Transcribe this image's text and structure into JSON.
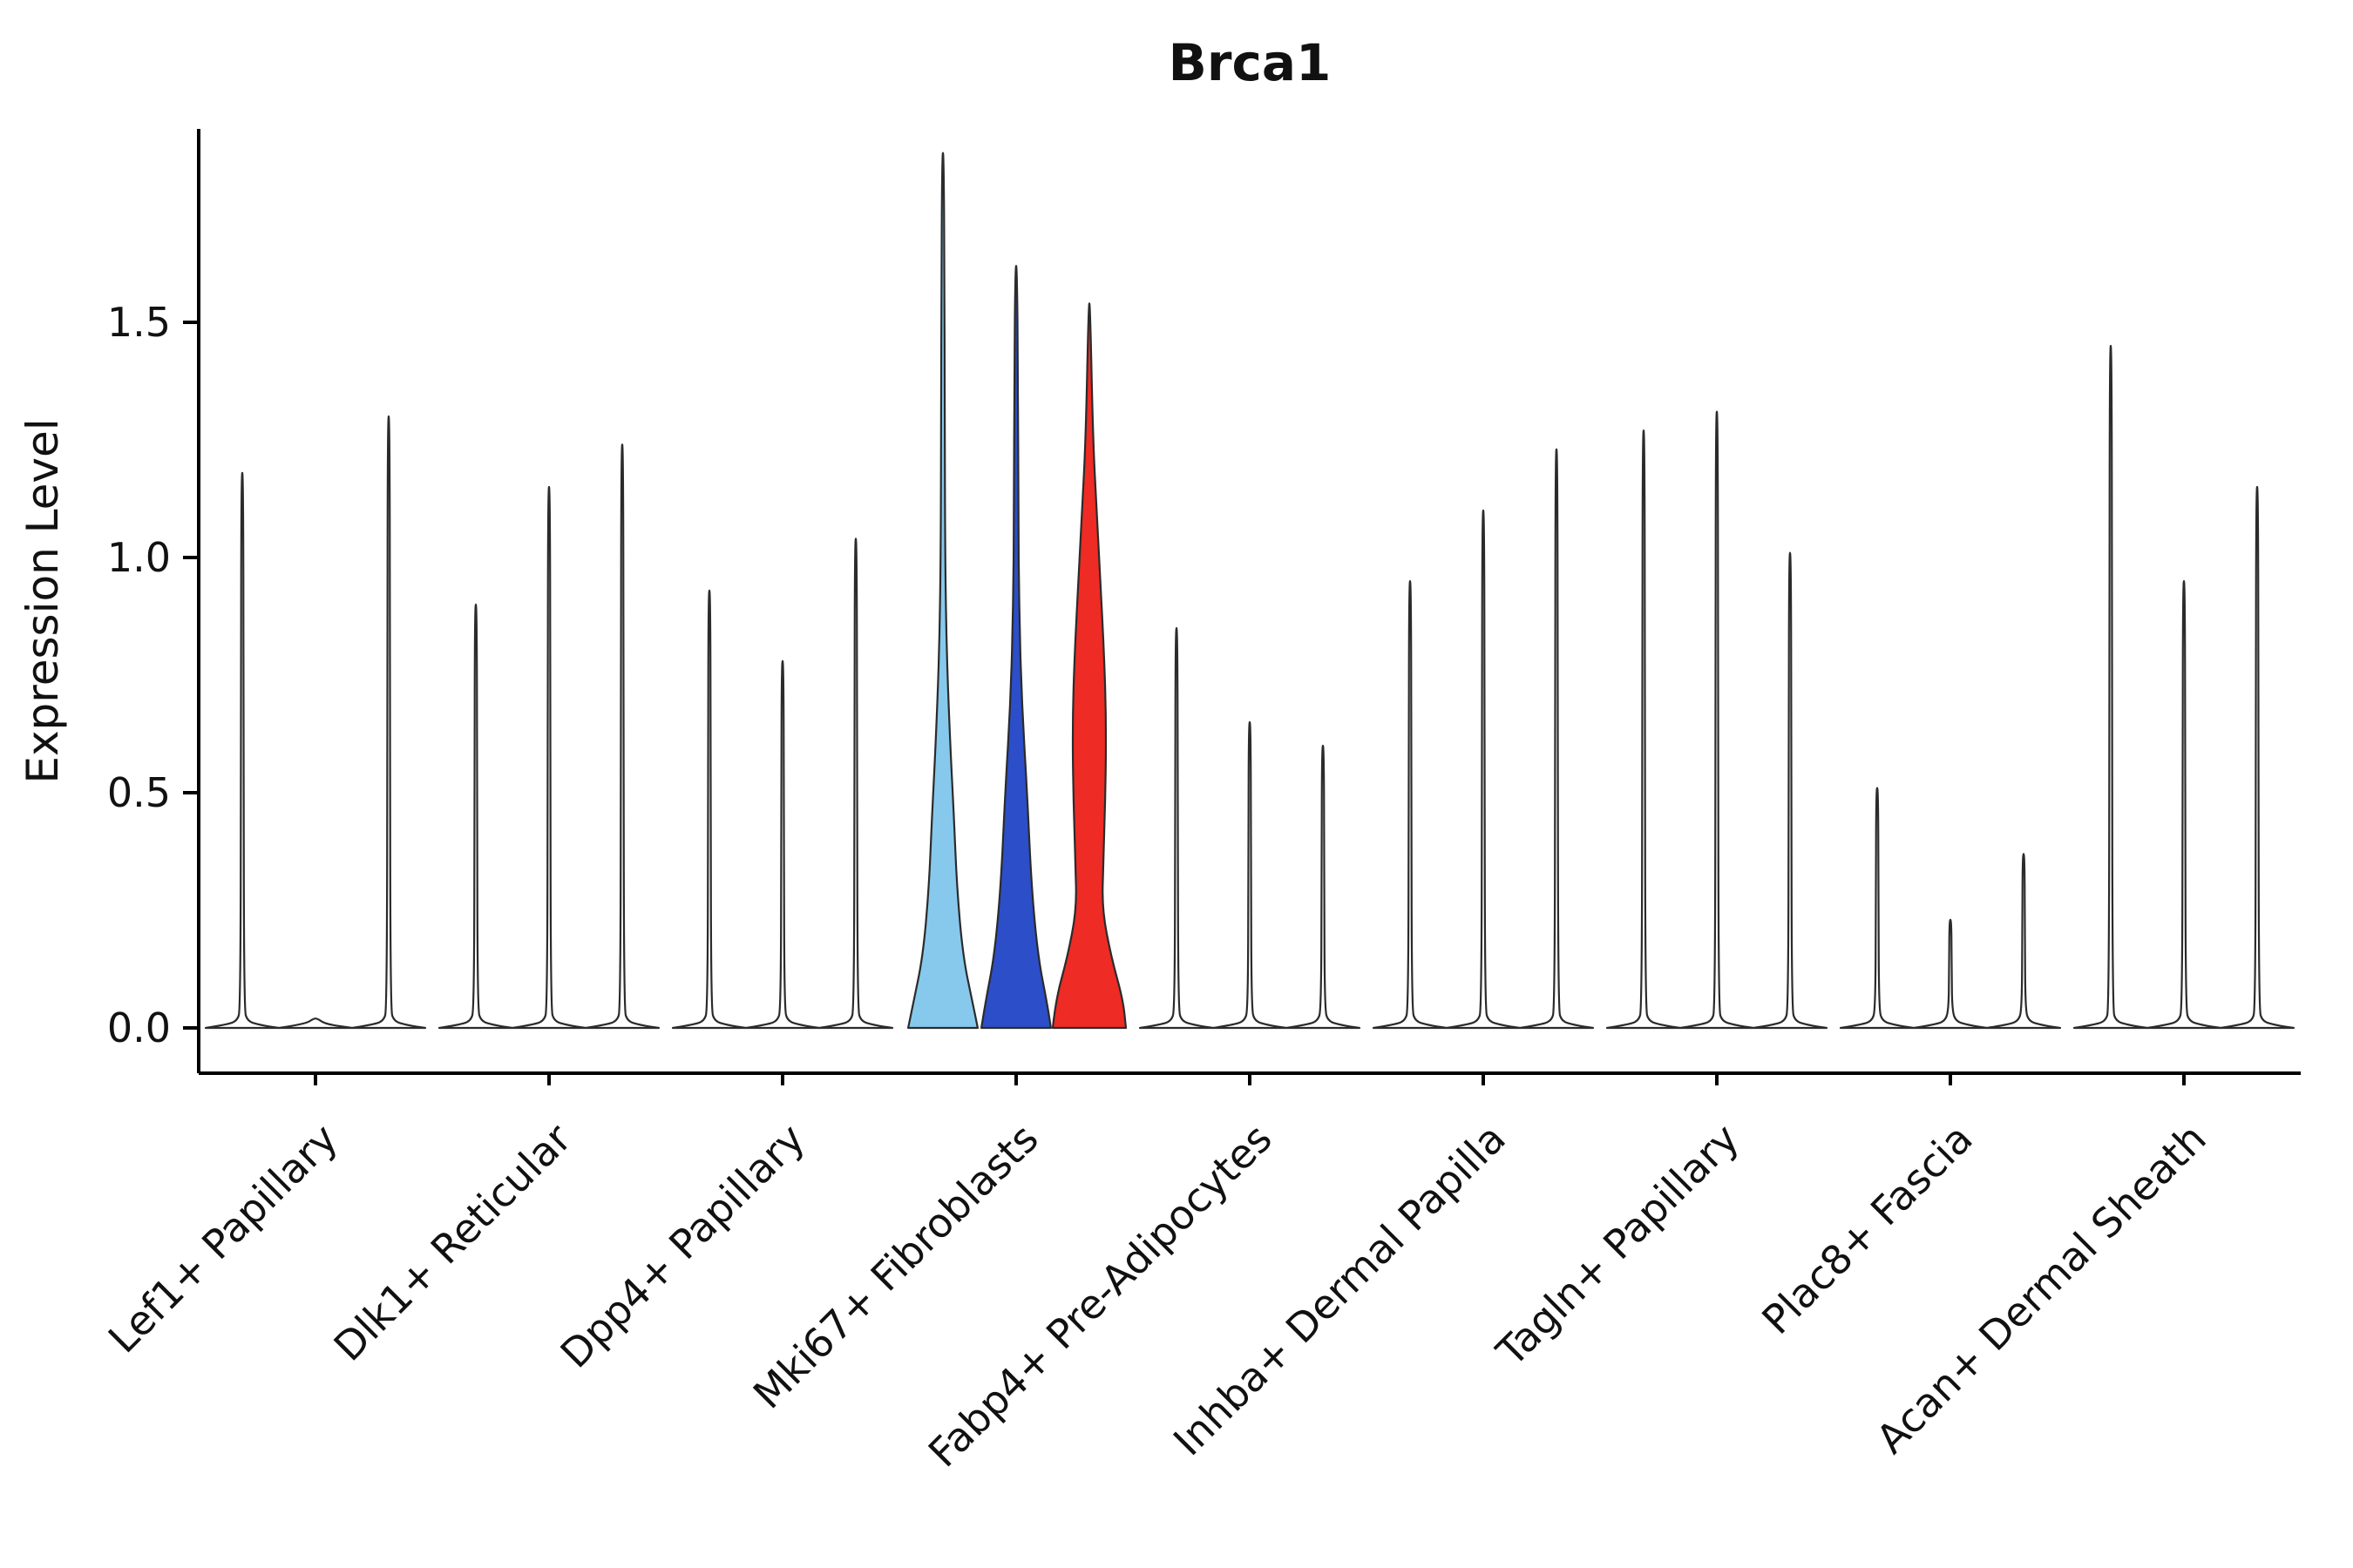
{
  "figure": {
    "title": "Brca1",
    "ylabel": "Expression Level"
  },
  "chart_data": {
    "type": "violin",
    "title": "Brca1",
    "ylabel": "Expression Level",
    "xlabel": "",
    "yticks": [
      0.0,
      0.5,
      1.0,
      1.5
    ],
    "ylim": [
      0,
      1.91
    ],
    "grid": false,
    "legend": "none",
    "violins_per_category": 3,
    "outline_color": "#2b2b2b",
    "default_fill": "#ffffff",
    "categories": [
      "Lef1+ Papillary",
      "Dlk1+ Reticular",
      "Dpp4+ Papillary",
      "Mki67+ Fibroblasts",
      "Fabp4+ Pre-Adipocytes",
      "Inhba+ Dermal Papilla",
      "Tagln+ Papillary",
      "Plac8+ Fascia",
      "Acan+ Dermal Sheath"
    ],
    "series": [
      {
        "category": "Lef1+ Papillary",
        "maxima": [
          1.18,
          0.0,
          1.3
        ]
      },
      {
        "category": "Dlk1+ Reticular",
        "maxima": [
          0.9,
          1.15,
          1.24
        ]
      },
      {
        "category": "Dpp4+ Papillary",
        "maxima": [
          0.93,
          0.78,
          1.04
        ]
      },
      {
        "category": "Mki67+ Fibroblasts",
        "maxima": [
          1.86,
          1.62,
          1.54
        ],
        "colors": [
          "#87C9EC",
          "#2C4EC8",
          "#EE2B24"
        ],
        "profiles": [
          [
            [
              0,
              0.95
            ],
            [
              0.05,
              0.82
            ],
            [
              0.15,
              0.55
            ],
            [
              0.3,
              0.38
            ],
            [
              0.45,
              0.3
            ],
            [
              0.6,
              0.2
            ],
            [
              0.8,
              0.1
            ],
            [
              1.0,
              0.06
            ],
            [
              1.3,
              0.05
            ],
            [
              1.6,
              0.04
            ],
            [
              1.86,
              0.02
            ]
          ],
          [
            [
              0,
              0.95
            ],
            [
              0.05,
              0.85
            ],
            [
              0.15,
              0.6
            ],
            [
              0.3,
              0.42
            ],
            [
              0.5,
              0.3
            ],
            [
              0.7,
              0.15
            ],
            [
              0.9,
              0.08
            ],
            [
              1.1,
              0.06
            ],
            [
              1.4,
              0.05
            ],
            [
              1.62,
              0.02
            ]
          ],
          [
            [
              0,
              1.0
            ],
            [
              0.06,
              0.92
            ],
            [
              0.15,
              0.6
            ],
            [
              0.25,
              0.35
            ],
            [
              0.35,
              0.38
            ],
            [
              0.5,
              0.44
            ],
            [
              0.65,
              0.46
            ],
            [
              0.8,
              0.4
            ],
            [
              0.95,
              0.3
            ],
            [
              1.1,
              0.2
            ],
            [
              1.25,
              0.1
            ],
            [
              1.54,
              0.02
            ]
          ]
        ]
      },
      {
        "category": "Fabp4+ Pre-Adipocytes",
        "maxima": [
          0.85,
          0.65,
          0.6
        ]
      },
      {
        "category": "Inhba+ Dermal Papilla",
        "maxima": [
          0.95,
          1.1,
          1.23
        ]
      },
      {
        "category": "Tagln+ Papillary",
        "maxima": [
          1.27,
          1.31,
          1.01
        ]
      },
      {
        "category": "Plac8+ Fascia",
        "maxima": [
          0.51,
          0.23,
          0.37
        ]
      },
      {
        "category": "Acan+ Dermal Sheath",
        "maxima": [
          1.45,
          0.95,
          1.15
        ]
      }
    ]
  }
}
